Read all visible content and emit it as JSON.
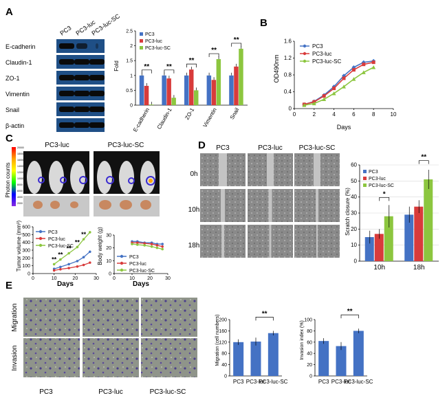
{
  "panel_labels": [
    "A",
    "B",
    "C",
    "D",
    "E"
  ],
  "colors": {
    "pc3": "#4472c4",
    "pc3luc": "#d83b3b",
    "pc3lucsc": "#8cc63f",
    "blot_bg": "#1f4f86",
    "band": "#0a0a0a"
  },
  "blot": {
    "lanes": [
      "PC3",
      "PC3-luc",
      "PC3-luc-SC"
    ],
    "rows": [
      "E-cadherin",
      "Claudin-1",
      "ZO-1",
      "Vimentin",
      "Snail",
      "β-actin"
    ]
  },
  "sig": "**",
  "sig1": "*",
  "cim": {
    "lanes": [
      "PC3-luc",
      "PC3-luc-SC"
    ],
    "colorbar_label": "Photon counts",
    "colorbar_ticks": [
      "20000",
      "18000",
      "16000",
      "14000",
      "12000",
      "10000",
      "8000",
      "6000",
      "4000",
      "2000"
    ]
  },
  "scratch": {
    "cols": [
      "PC3",
      "PC3-luc",
      "PC3-luc-SC"
    ],
    "rows": [
      "0h",
      "10h",
      "18h"
    ]
  },
  "transwell": {
    "rows": [
      "Migration",
      "Invasion"
    ],
    "cols": [
      "PC3",
      "PC3-luc",
      "PC3-luc-SC"
    ]
  },
  "chart_data": [
    {
      "id": "A-bar",
      "type": "bar",
      "title": "",
      "xlabel": "",
      "ylabel": "Fold",
      "categories": [
        "E-cadherin",
        "Claudin-1",
        "ZO-1",
        "Vimentin",
        "Snail"
      ],
      "ylim": [
        0,
        2.5
      ],
      "yticks": [
        "0",
        "0.5",
        "1",
        "1.5",
        "2",
        "2.5"
      ],
      "legend": [
        "PC3",
        "PC3-luc",
        "PC3-luc-SC"
      ],
      "series": [
        {
          "name": "PC3",
          "values": [
            1.0,
            1.0,
            1.0,
            1.0,
            1.0
          ]
        },
        {
          "name": "PC3-luc",
          "values": [
            0.65,
            0.9,
            1.2,
            0.85,
            1.3
          ]
        },
        {
          "name": "PC3-luc-SC",
          "values": [
            0.02,
            0.25,
            0.5,
            1.55,
            1.9
          ]
        }
      ]
    },
    {
      "id": "B-line",
      "type": "line",
      "title": "",
      "xlabel": "Days",
      "ylabel": "OD490nm",
      "x": [
        1,
        2,
        3,
        4,
        5,
        6,
        7,
        8
      ],
      "xlim": [
        0,
        10
      ],
      "ylim": [
        0,
        1.6
      ],
      "xticks": [
        "0",
        "2",
        "4",
        "6",
        "8",
        "10"
      ],
      "yticks": [
        "0",
        "0.4",
        "0.8",
        "1.2",
        "1.6"
      ],
      "legend": [
        "PC3",
        "PC3-luc",
        "PC3-luc-SC"
      ],
      "series": [
        {
          "name": "PC3",
          "values": [
            0.1,
            0.17,
            0.32,
            0.52,
            0.78,
            0.98,
            1.1,
            1.13
          ]
        },
        {
          "name": "PC3-luc",
          "values": [
            0.1,
            0.16,
            0.3,
            0.48,
            0.72,
            0.92,
            1.05,
            1.1
          ]
        },
        {
          "name": "PC3-luc-SC",
          "values": [
            0.08,
            0.12,
            0.22,
            0.36,
            0.52,
            0.7,
            0.86,
            0.98
          ]
        }
      ]
    },
    {
      "id": "C-tumor",
      "type": "line",
      "title": "",
      "xlabel": "Days",
      "ylabel": "Tumor volume (mm³)",
      "x": [
        10,
        13,
        17,
        21,
        24,
        27
      ],
      "xlim": [
        0,
        30
      ],
      "ylim": [
        0,
        600
      ],
      "xticks": [
        "0",
        "10",
        "20",
        "30"
      ],
      "yticks": [
        "0",
        "100",
        "200",
        "300",
        "400",
        "500",
        "600"
      ],
      "legend": [
        "PC3",
        "PC3-luc",
        "PC3-luc-SC"
      ],
      "series": [
        {
          "name": "PC3",
          "values": [
            60,
            85,
            120,
            160,
            210,
            280
          ]
        },
        {
          "name": "PC3-luc",
          "values": [
            40,
            55,
            70,
            90,
            110,
            140
          ]
        },
        {
          "name": "PC3-luc-SC",
          "values": [
            120,
            180,
            260,
            340,
            440,
            530
          ]
        }
      ]
    },
    {
      "id": "C-weight",
      "type": "line",
      "title": "",
      "xlabel": "Days",
      "ylabel": "Body weight (g)",
      "x": [
        10,
        13,
        17,
        21,
        24,
        27
      ],
      "xlim": [
        0,
        30
      ],
      "ylim": [
        0,
        30
      ],
      "xticks": [
        "0",
        "10",
        "20",
        "30"
      ],
      "yticks": [
        "0",
        "10",
        "20",
        "30"
      ],
      "legend": [
        "PC3",
        "PC3-luc",
        "PC3-luc-SC"
      ],
      "series": [
        {
          "name": "PC3",
          "values": [
            25,
            25,
            24,
            24,
            23,
            23
          ]
        },
        {
          "name": "PC3-luc",
          "values": [
            24,
            24,
            23.5,
            23,
            22,
            21
          ]
        },
        {
          "name": "PC3-luc-SC",
          "values": [
            23,
            22.5,
            22,
            21,
            20,
            19
          ]
        }
      ]
    },
    {
      "id": "D-bar",
      "type": "bar",
      "title": "",
      "xlabel": "",
      "ylabel": "Scratch closure (%)",
      "categories": [
        "10h",
        "18h"
      ],
      "ylim": [
        0,
        60
      ],
      "yticks": [
        "0",
        "10",
        "20",
        "30",
        "40",
        "50",
        "60"
      ],
      "legend": [
        "PC3",
        "PC3-luc",
        "PC3-luc-SC"
      ],
      "series": [
        {
          "name": "PC3",
          "values": [
            15,
            29
          ]
        },
        {
          "name": "PC3-luc",
          "values": [
            17,
            34
          ]
        },
        {
          "name": "PC3-luc-SC",
          "values": [
            28,
            51
          ]
        }
      ]
    },
    {
      "id": "E-migration",
      "type": "bar",
      "title": "",
      "xlabel": "",
      "ylabel": "Migration (cell numbers)",
      "categories": [
        "PC3",
        "PC3-luc",
        "PC3-luc-SC"
      ],
      "ylim": [
        0,
        200
      ],
      "yticks": [
        "0",
        "40",
        "80",
        "120",
        "160",
        "200"
      ],
      "series": [
        {
          "name": "Migration",
          "values": [
            120,
            122,
            152
          ]
        }
      ]
    },
    {
      "id": "E-invasion",
      "type": "bar",
      "title": "",
      "xlabel": "",
      "ylabel": "Invasion index (%)",
      "categories": [
        "PC3",
        "PC3-luc",
        "PC3-luc-SC"
      ],
      "ylim": [
        0,
        100
      ],
      "yticks": [
        "0",
        "20",
        "40",
        "60",
        "80",
        "100"
      ],
      "series": [
        {
          "name": "Invasion",
          "values": [
            62,
            53,
            80
          ]
        }
      ]
    }
  ]
}
